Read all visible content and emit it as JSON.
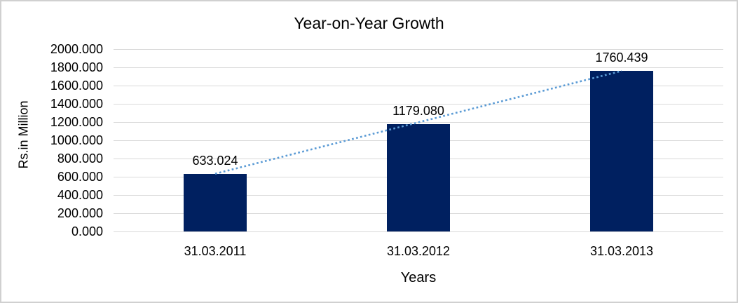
{
  "chart_data": {
    "type": "bar",
    "title": "Year-on-Year Growth",
    "xlabel": "Years",
    "ylabel": "Rs.in Million",
    "categories": [
      "31.03.2011",
      "31.03.2012",
      "31.03.2013"
    ],
    "values": [
      633.024,
      1179.08,
      1760.439
    ],
    "value_labels": [
      "633.024",
      "1179.080",
      "1760.439"
    ],
    "ylim": [
      0,
      2000
    ],
    "ytick_step": 200,
    "ytick_labels": [
      "0.000",
      "200.000",
      "400.000",
      "600.000",
      "800.000",
      "1000.000",
      "1200.000",
      "1400.000",
      "1600.000",
      "1800.000",
      "2000.000"
    ],
    "grid": true,
    "legend": "none",
    "trendline": {
      "type": "linear",
      "style": "dotted",
      "from_category": "31.03.2011",
      "to_category": "31.03.2013"
    },
    "colors": {
      "bar": "#002060",
      "trendline": "#5B9BD5",
      "gridline": "#D9D9D9",
      "frame_border": "#D0D0D0",
      "text": "#000000",
      "background": "#FFFFFF"
    }
  }
}
